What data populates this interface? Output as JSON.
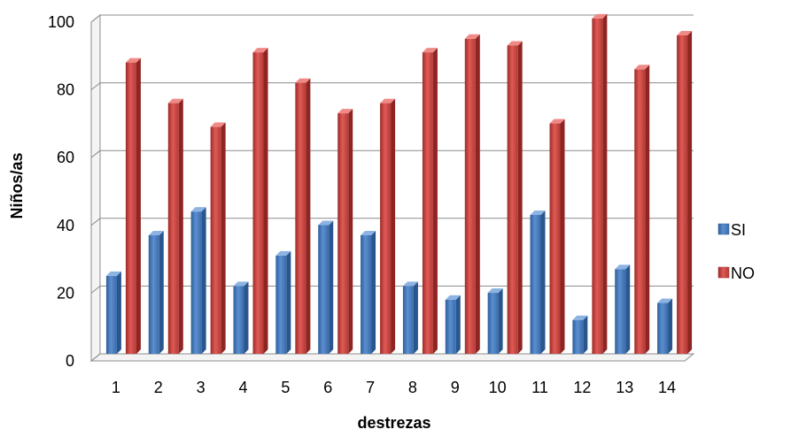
{
  "chart_data": {
    "type": "bar",
    "title": "",
    "xlabel": "destrezas",
    "ylabel": "Niños/as",
    "categories": [
      "1",
      "2",
      "3",
      "4",
      "5",
      "6",
      "7",
      "8",
      "9",
      "10",
      "11",
      "12",
      "13",
      "14"
    ],
    "series": [
      {
        "name": "SI",
        "color": "#4a7ebb",
        "values": [
          23,
          35,
          42,
          20,
          29,
          38,
          35,
          20,
          16,
          18,
          41,
          10,
          25,
          15
        ]
      },
      {
        "name": "NO",
        "color": "#c0504d",
        "values": [
          86,
          74,
          67,
          89,
          80,
          71,
          74,
          89,
          93,
          91,
          68,
          99,
          84,
          94
        ]
      }
    ],
    "ylim": [
      0,
      100
    ],
    "yticks": [
      0,
      20,
      40,
      60,
      80,
      100
    ],
    "grid": true,
    "legend_position": "right"
  }
}
